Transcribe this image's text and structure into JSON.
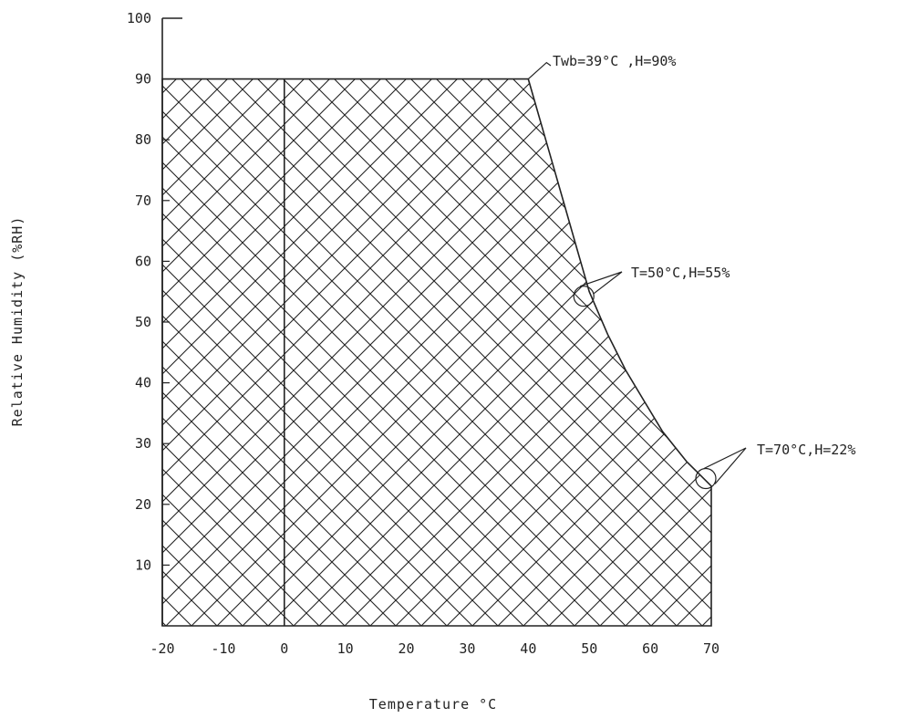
{
  "chart_data": {
    "type": "area",
    "xlabel": "Temperature °C",
    "ylabel": "Relative Humidity (%RH)",
    "xlim": [
      -20,
      70
    ],
    "ylim": [
      0,
      100
    ],
    "x_ticks": [
      "-20",
      "-10",
      "0",
      "10",
      "20",
      "30",
      "40",
      "50",
      "60",
      "70"
    ],
    "x_tick_values": [
      -20,
      -10,
      0,
      10,
      20,
      30,
      40,
      50,
      60,
      70
    ],
    "y_ticks": [
      "10",
      "20",
      "30",
      "40",
      "50",
      "60",
      "70",
      "80",
      "90",
      "100"
    ],
    "y_tick_values": [
      10,
      20,
      30,
      40,
      50,
      60,
      70,
      80,
      90,
      100
    ],
    "region_boundary": [
      {
        "x": -20,
        "y": 0
      },
      {
        "x": -20,
        "y": 90
      },
      {
        "x": 40,
        "y": 90
      },
      {
        "x": 42,
        "y": 83
      },
      {
        "x": 44,
        "y": 76
      },
      {
        "x": 46,
        "y": 69
      },
      {
        "x": 48,
        "y": 62
      },
      {
        "x": 50,
        "y": 55
      },
      {
        "x": 53,
        "y": 48
      },
      {
        "x": 56,
        "y": 42
      },
      {
        "x": 59,
        "y": 37
      },
      {
        "x": 62,
        "y": 32
      },
      {
        "x": 66,
        "y": 27
      },
      {
        "x": 70,
        "y": 23
      },
      {
        "x": 70,
        "y": 0
      }
    ],
    "vertical_line_x": 0,
    "fill_pattern": "crosshatch",
    "grid": false,
    "annotations": [
      {
        "text": "Twb=39°C ,H=90%",
        "x": 40,
        "y": 90
      },
      {
        "text": "T=50°C,H=55%",
        "x": 50,
        "y": 55
      },
      {
        "text": "T=70°C,H=22%",
        "x": 70,
        "y": 25
      }
    ]
  }
}
